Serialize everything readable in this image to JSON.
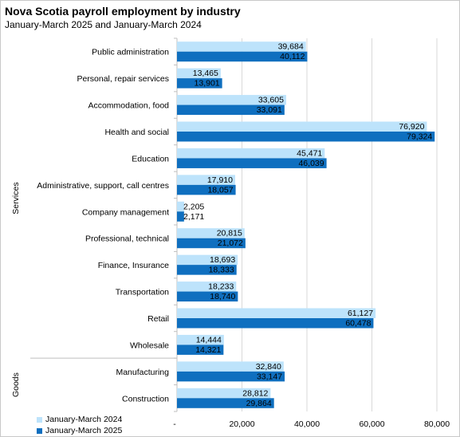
{
  "chart_data": {
    "type": "bar",
    "orientation": "horizontal",
    "title": "Nova Scotia payroll employment  by industry",
    "subtitle": "January-March  2025 and January-March  2024",
    "categories": [
      "Public administration",
      "Personal, repair services",
      "Accommodation, food",
      "Health and social",
      "Education",
      "Administrative, support, call centres",
      "Company management",
      "Professional, technical",
      "Finance, Insurance",
      "Transportation",
      "Retail",
      "Wholesale",
      "Manufacturing",
      "Construction"
    ],
    "groups": [
      {
        "label": "Services",
        "from": 0,
        "to": 11
      },
      {
        "label": "Goods",
        "from": 12,
        "to": 13
      }
    ],
    "series": [
      {
        "name": "January-March 2024",
        "color": "#bde3fb",
        "values": [
          39684,
          13465,
          33605,
          76920,
          45471,
          17910,
          2205,
          20815,
          18693,
          18233,
          61127,
          14444,
          32840,
          28812
        ],
        "labels": [
          "39,684",
          "13,465",
          "33,605",
          "76,920",
          "45,471",
          "17,910",
          "2,205",
          "20,815",
          "18,693",
          "18,233",
          "61,127",
          "14,444",
          "32,840",
          "28,812"
        ]
      },
      {
        "name": "January-March 2025",
        "color": "#0f6fbf",
        "values": [
          40112,
          13901,
          33091,
          79324,
          46039,
          18057,
          2171,
          21072,
          18333,
          18740,
          60478,
          14321,
          33147,
          29864
        ],
        "labels": [
          "40,112",
          "13,901",
          "33,091",
          "79,324",
          "46,039",
          "18,057",
          "2,171",
          "21,072",
          "18,333",
          "18,740",
          "60,478",
          "14,321",
          "33,147",
          "29,864"
        ]
      }
    ],
    "xlim": [
      0,
      88000
    ],
    "xticks": [
      0,
      20000,
      40000,
      60000,
      80000
    ],
    "xtick_labels": [
      "-",
      "20,000",
      "40,000",
      "60,000",
      "80,000"
    ],
    "grid": true,
    "legend_position": "bottom-left"
  }
}
